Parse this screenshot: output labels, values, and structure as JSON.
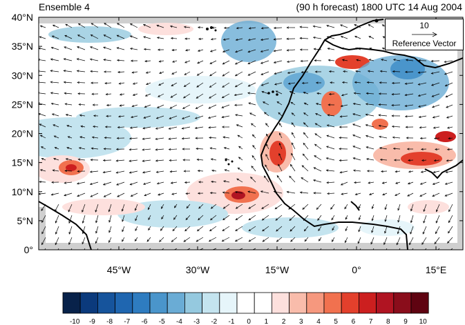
{
  "title_left": "Ensemble 4",
  "title_right": "(90 h forecast) 1800 UTC 14 Aug 2004",
  "lat_labels": [
    "0°",
    "5°N",
    "10°N",
    "15°N",
    "20°N",
    "25°N",
    "30°N",
    "35°N",
    "40°N"
  ],
  "lon_labels": [
    "45°W",
    "30°W",
    "15°W",
    "0°",
    "15°E"
  ],
  "reference_vector": {
    "magnitude": "10",
    "label": "Reference Vector"
  },
  "colorbar": {
    "tick_labels": [
      "-10",
      "-9",
      "-8",
      "-7",
      "-6",
      "-5",
      "-4",
      "-3",
      "-2",
      "-1",
      "0",
      "1",
      "2",
      "3",
      "4",
      "5",
      "6",
      "7",
      "8",
      "9",
      "10"
    ],
    "colors": [
      "#08224a",
      "#0b3a7c",
      "#16549c",
      "#1f66b0",
      "#2e7cc0",
      "#4a95cb",
      "#6aacd5",
      "#95c9df",
      "#c4e4ef",
      "#e6f5fa",
      "#ffffff",
      "#ffffff",
      "#fde0dd",
      "#f9bcab",
      "#f6987e",
      "#f1714f",
      "#e3402c",
      "#cc1f1f",
      "#b01422",
      "#8a0d1b",
      "#5f0311"
    ]
  }
}
